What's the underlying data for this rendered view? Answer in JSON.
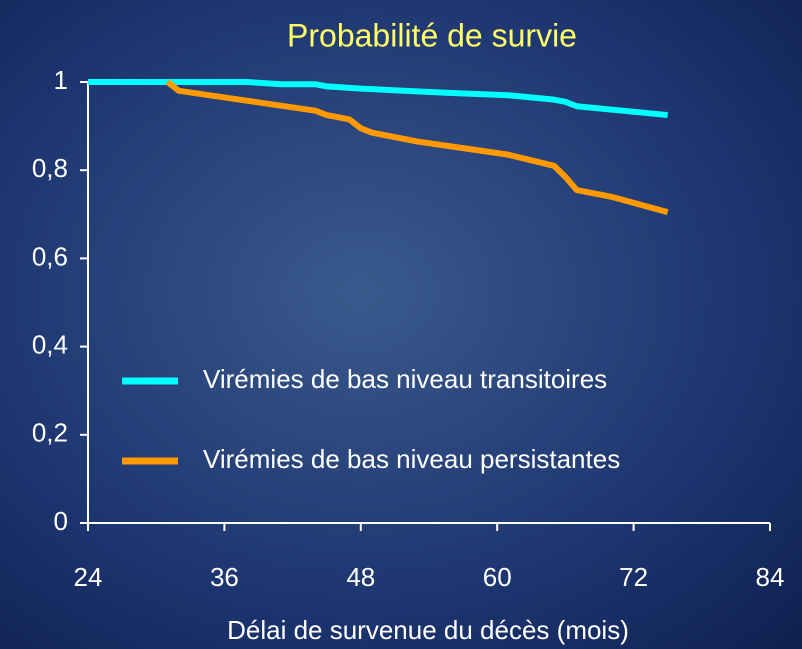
{
  "chart_data": {
    "type": "line",
    "title": "Probabilité de survie",
    "x_label": "Délai de survenue du décès (mois)",
    "xlim": [
      24,
      84
    ],
    "xticks": [
      24,
      36,
      48,
      60,
      72,
      84
    ],
    "ylim": [
      0,
      1
    ],
    "yticks": [
      0,
      {
        "value": 0.2,
        "label": "0,2"
      },
      {
        "value": 0.4,
        "label": "0,4"
      },
      {
        "value": 0.6,
        "label": "0,6"
      },
      {
        "value": 0.8,
        "label": "0,8"
      },
      1
    ],
    "legend": "lower left",
    "series": [
      {
        "name": "Virémies de bas niveau transitoires",
        "color": "#00ffff",
        "x": [
          24,
          38,
          41,
          44,
          45,
          48,
          52,
          56,
          61,
          65,
          66,
          67,
          75
        ],
        "values": [
          1,
          1,
          0.995,
          0.995,
          0.99,
          0.985,
          0.98,
          0.975,
          0.97,
          0.96,
          0.955,
          0.945,
          0.925
        ]
      },
      {
        "name": "Virémies de bas niveau persistantes",
        "color": "#ff9900",
        "x": [
          31,
          32,
          36,
          40,
          44,
          45,
          47,
          48,
          49,
          53,
          57,
          61,
          65,
          66,
          67,
          70,
          75
        ],
        "values": [
          1,
          0.98,
          0.965,
          0.95,
          0.935,
          0.925,
          0.915,
          0.895,
          0.885,
          0.865,
          0.85,
          0.835,
          0.81,
          0.785,
          0.755,
          0.74,
          0.705
        ]
      }
    ]
  }
}
